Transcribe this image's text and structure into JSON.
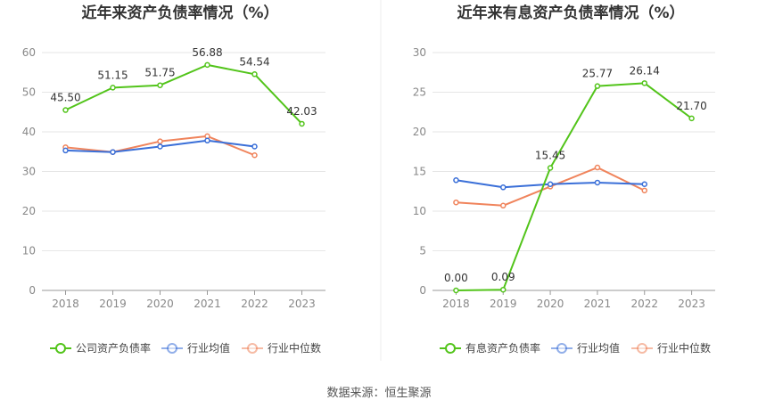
{
  "source_label": "数据来源：恒生聚源",
  "chart_data": [
    {
      "type": "line",
      "title": "近年来资产负债率情况（%）",
      "x": [
        "2018",
        "2019",
        "2020",
        "2021",
        "2022",
        "2023"
      ],
      "ylim": [
        0,
        60
      ],
      "yticks": [
        0,
        10,
        20,
        30,
        40,
        50,
        60
      ],
      "series": [
        {
          "name": "公司资产负债率",
          "color": "#52c41a",
          "values": [
            45.5,
            51.15,
            51.75,
            56.88,
            54.54,
            42.03
          ],
          "labels": [
            "45.50",
            "51.15",
            "51.75",
            "56.88",
            "54.54",
            "42.03"
          ]
        },
        {
          "name": "行业均值",
          "color": "#3a6fd8",
          "values": [
            35.3,
            34.9,
            36.3,
            37.8,
            36.3,
            null
          ]
        },
        {
          "name": "行业中位数",
          "color": "#f0845c",
          "values": [
            36.1,
            34.9,
            37.6,
            38.9,
            34.1,
            null
          ]
        }
      ],
      "legend_position": "bottom"
    },
    {
      "type": "line",
      "title": "近年来有息资产负债率情况（%）",
      "x": [
        "2018",
        "2019",
        "2020",
        "2021",
        "2022",
        "2023"
      ],
      "ylim": [
        0,
        30
      ],
      "yticks": [
        0,
        5,
        10,
        15,
        20,
        25,
        30
      ],
      "series": [
        {
          "name": "有息资产负债率",
          "color": "#52c41a",
          "values": [
            0.0,
            0.09,
            15.45,
            25.77,
            26.14,
            21.7
          ],
          "labels": [
            "0.00",
            "0.09",
            "15.45",
            "25.77",
            "26.14",
            "21.70"
          ]
        },
        {
          "name": "行业均值",
          "color": "#3a6fd8",
          "values": [
            13.9,
            13.0,
            13.4,
            13.6,
            13.4,
            null
          ]
        },
        {
          "name": "行业中位数",
          "color": "#f0845c",
          "values": [
            11.1,
            10.7,
            13.1,
            15.5,
            12.6,
            null
          ]
        }
      ],
      "legend_position": "bottom"
    }
  ]
}
